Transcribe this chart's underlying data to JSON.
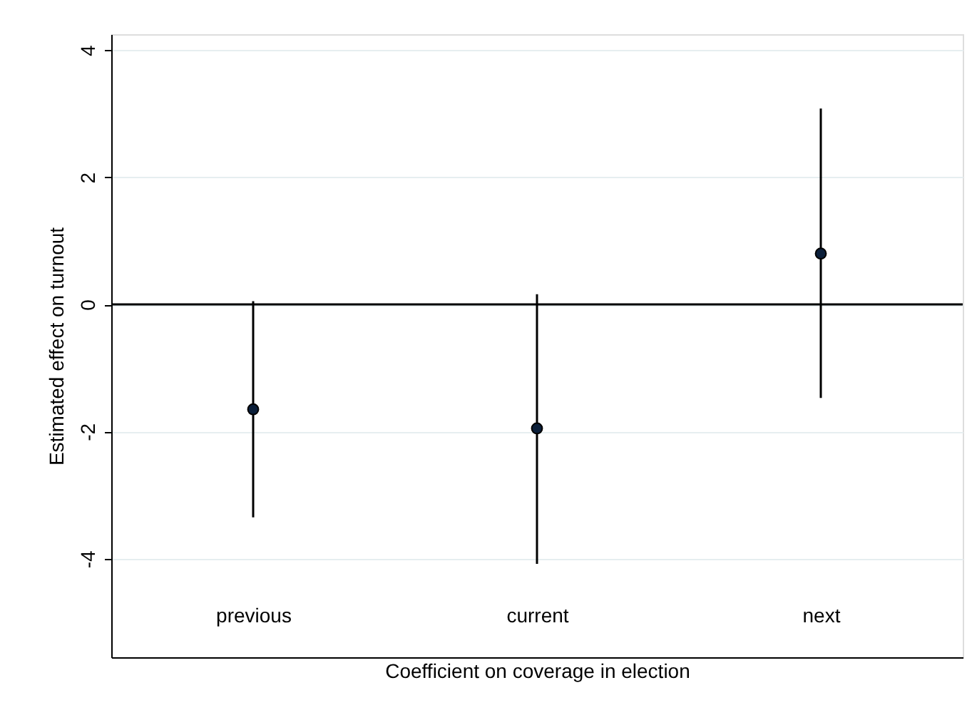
{
  "chart_data": {
    "type": "scatter",
    "xlabel": "Coefficient on coverage in election",
    "ylabel": "Estimated effect on turnout",
    "categories": [
      "previous",
      "current",
      "next"
    ],
    "series": [
      {
        "color": "#0b1f3a",
        "values": [
          -1.65,
          -1.95,
          0.8
        ],
        "errors": [
          [
            -3.35,
            0.05
          ],
          [
            -4.08,
            0.16
          ],
          [
            -1.47,
            3.08
          ]
        ]
      }
    ],
    "ylim": [
      -5.55,
      4.25
    ],
    "yticks": [
      -4,
      -2,
      0,
      2,
      4
    ],
    "grid": "y",
    "marker": "circle",
    "ref_lines": [
      {
        "axis": "y",
        "value": 0,
        "color": "#000000"
      }
    ]
  }
}
